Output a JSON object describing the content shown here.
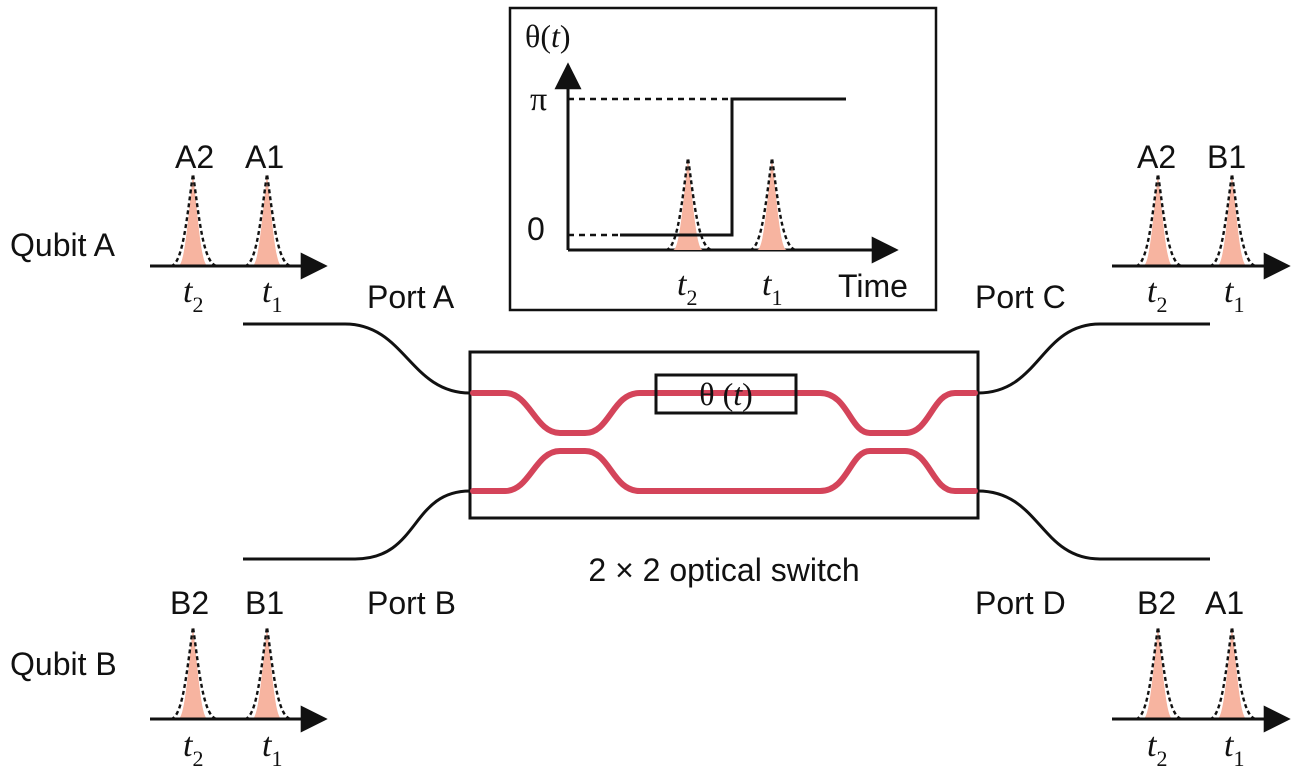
{
  "qubits": {
    "a": {
      "label": "Qubit A",
      "pulse_labels": [
        "A2",
        "A1"
      ]
    },
    "b": {
      "label": "Qubit B",
      "pulse_labels": [
        "B2",
        "B1"
      ]
    }
  },
  "time_labels": {
    "t2_main": "t",
    "t2_sub": "2",
    "t1_main": "t",
    "t1_sub": "1"
  },
  "ports": {
    "a": "Port A",
    "b": "Port B",
    "c": "Port C",
    "d": "Port D"
  },
  "outputs": {
    "c": {
      "pulse_labels": [
        "A2",
        "B1"
      ]
    },
    "d": {
      "pulse_labels": [
        "B2",
        "A1"
      ]
    }
  },
  "switch": {
    "caption": "2 × 2 optical switch",
    "phase_label_main": "θ (",
    "phase_label_var": "t",
    "phase_label_close": ")"
  },
  "inset": {
    "ylabel_main": "θ(",
    "ylabel_var": "t",
    "ylabel_close": ")",
    "y_ticks": [
      "π",
      "0"
    ],
    "xlabel": "Time"
  },
  "colors": {
    "waveguide": "#d4445a",
    "pulse_fill": "#f7b4a0",
    "line": "#111111"
  }
}
